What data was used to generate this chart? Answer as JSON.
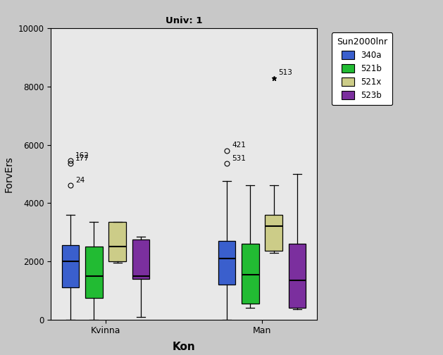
{
  "title": "Univ: 1",
  "xlabel": "Kon",
  "ylabel": "ForvErs",
  "ylim": [
    0,
    10000
  ],
  "yticks": [
    0,
    2000,
    4000,
    6000,
    8000,
    10000
  ],
  "groups": [
    "Kvinna",
    "Man"
  ],
  "categories": [
    "340a",
    "521b",
    "521x",
    "523b"
  ],
  "colors": [
    "#3a5fcd",
    "#22bb33",
    "#cccc88",
    "#7b2f9e"
  ],
  "legend_title": "Sun2000lnr",
  "fig_bg": "#c8c8c8",
  "plot_bg": "#e8e8e8",
  "boxes": {
    "Kvinna": {
      "340a": {
        "whislo": 0,
        "q1": 1100,
        "median": 2000,
        "q3": 2550,
        "whishi": 3600,
        "outliers": [
          4600,
          5350,
          5450
        ],
        "outlier_labels": [
          "24",
          "177",
          "162"
        ]
      },
      "521b": {
        "whislo": 0,
        "q1": 750,
        "median": 1500,
        "q3": 2500,
        "whishi": 3350,
        "outliers": [],
        "outlier_labels": []
      },
      "521x": {
        "whislo": 1950,
        "q1": 2000,
        "median": 2500,
        "q3": 3350,
        "whishi": 3350,
        "outliers": [],
        "outlier_labels": []
      },
      "523b": {
        "whislo": 80,
        "q1": 1400,
        "median": 1500,
        "q3": 2750,
        "whishi": 2850,
        "outliers": [],
        "outlier_labels": []
      }
    },
    "Man": {
      "340a": {
        "whislo": 0,
        "q1": 1200,
        "median": 2100,
        "q3": 2700,
        "whishi": 4750,
        "outliers": [
          5350,
          5800
        ],
        "outlier_labels": [
          "531",
          "421"
        ]
      },
      "521b": {
        "whislo": 400,
        "q1": 550,
        "median": 1550,
        "q3": 2600,
        "whishi": 4600,
        "outliers": [],
        "outlier_labels": []
      },
      "521x": {
        "whislo": 2300,
        "q1": 2350,
        "median": 3200,
        "q3": 3600,
        "whishi": 4600,
        "outliers": [],
        "outlier_labels": [],
        "extreme_outlier": {
          "value": 8300,
          "label": "513"
        }
      },
      "523b": {
        "whislo": 350,
        "q1": 400,
        "median": 1350,
        "q3": 2600,
        "whishi": 5000,
        "outliers": [],
        "outlier_labels": []
      }
    }
  }
}
